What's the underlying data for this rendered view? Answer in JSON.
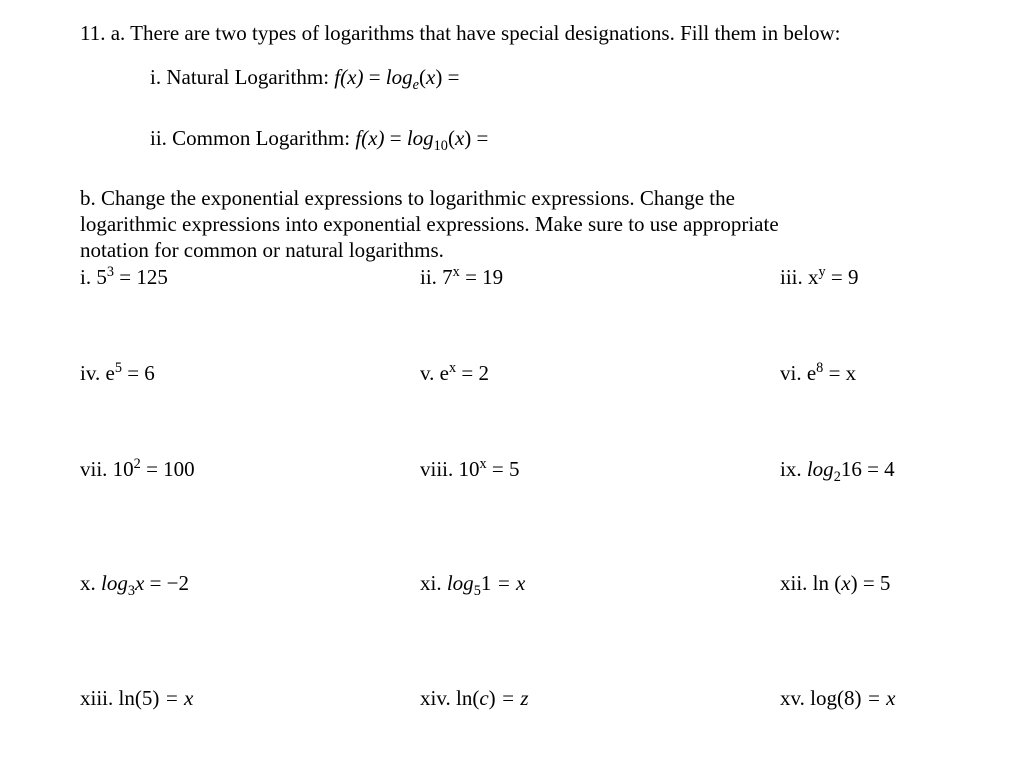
{
  "q11": {
    "a": {
      "intro_prefix": "11. a. ",
      "intro_text": "There are two types of logarithms that have special designations. Fill them in below:",
      "i": {
        "numeral": "i. ",
        "label": "Natural Logarithm:  ",
        "lhs": "f(x)",
        "eq1": " = ",
        "log_word": "log",
        "log_base": "e",
        "log_arg": "(x)",
        "eq2": " ="
      },
      "ii": {
        "numeral": "ii. ",
        "label": "Common Logarithm:   ",
        "lhs": "f(x)",
        "eq1": " = ",
        "log_word": "log",
        "log_base": "10",
        "log_arg": "(x)",
        "eq2": " ="
      }
    },
    "b": {
      "intro_prefix": "b. ",
      "intro_line1": "Change the exponential expressions to logarithmic expressions.  Change the",
      "intro_line2": "logarithmic expressions into exponential expressions. Make sure to use appropriate",
      "intro_line3": "notation for common or natural logarithms.",
      "items": {
        "i": {
          "numeral": "i. ",
          "base": "5",
          "exp": "3",
          "rhs": " = 125"
        },
        "ii": {
          "numeral": "ii. ",
          "base": "7",
          "exp": "x",
          "rhs": " = 19"
        },
        "iii": {
          "numeral": "iii. ",
          "base": "x",
          "exp": "y",
          "rhs": " = 9"
        },
        "iv": {
          "numeral": "iv. ",
          "base": "e",
          "exp": "5",
          "rhs": " = 6"
        },
        "v": {
          "numeral": "v. ",
          "base": "e",
          "exp": "x",
          "rhs": " = 2"
        },
        "vi": {
          "numeral": "vi. ",
          "base": "e",
          "exp": "8",
          "rhs": " = x"
        },
        "vii": {
          "numeral": "vii. ",
          "base": "10",
          "exp": "2",
          "rhs": " = 100"
        },
        "viii": {
          "numeral": "viii. ",
          "base": "10",
          "exp": "x",
          "rhs": " = 5"
        },
        "ix": {
          "numeral": "ix. ",
          "log_word": "log",
          "log_base": "2",
          "arg": "16",
          "rhs": " = 4"
        },
        "x": {
          "numeral": "x. ",
          "log_word": "log",
          "log_base": "3",
          "arg": "x",
          "rhs": " = −2"
        },
        "xi": {
          "numeral": "xi. ",
          "log_word": "log",
          "log_base": "5",
          "arg": "1",
          "rhs": " = x"
        },
        "xii": {
          "numeral": "xii. ",
          "fn": "ln ",
          "arg": "(x)",
          "rhs": " = 5"
        },
        "xiii": {
          "numeral": "xiii. ",
          "fn": "ln",
          "arg": "(5)",
          "rhs": " = x"
        },
        "xiv": {
          "numeral": "xiv. ",
          "fn": "ln",
          "arg": "(c)",
          "rhs": " = z"
        },
        "xv": {
          "numeral": "xv. ",
          "fn": "log",
          "arg": "(8)",
          "rhs": " = x"
        }
      }
    }
  }
}
